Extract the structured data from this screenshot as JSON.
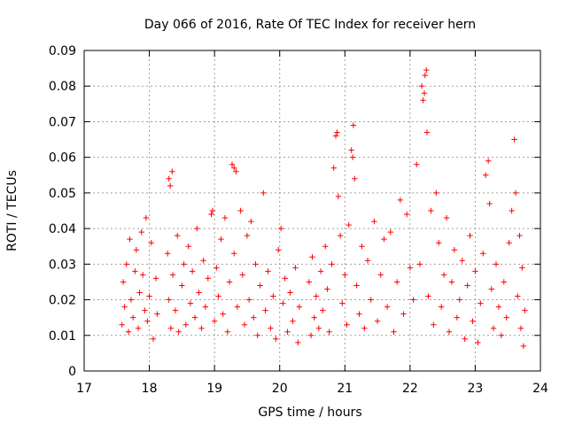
{
  "chart_data": {
    "type": "scatter",
    "title": "Day 066 of 2016, Rate Of TEC Index for receiver hern",
    "xlabel": "GPS time / hours",
    "ylabel": "ROTI / TECUs",
    "xlim": [
      17,
      24
    ],
    "ylim": [
      0,
      0.09
    ],
    "xticks": [
      17,
      18,
      19,
      20,
      21,
      22,
      23,
      24
    ],
    "yticks": [
      0,
      0.01,
      0.02,
      0.03,
      0.04,
      0.05,
      0.06,
      0.07,
      0.08,
      0.09
    ],
    "ytick_labels": [
      "0",
      "0.01",
      "0.02",
      "0.03",
      "0.04",
      "0.05",
      "0.06",
      "0.07",
      "0.08",
      "0.09"
    ],
    "grid": true,
    "marker": "+",
    "color": "#ff0000",
    "series": [
      {
        "name": "ROTI",
        "points": [
          [
            17.58,
            0.013
          ],
          [
            17.6,
            0.025
          ],
          [
            17.62,
            0.018
          ],
          [
            17.65,
            0.03
          ],
          [
            17.68,
            0.011
          ],
          [
            17.7,
            0.037
          ],
          [
            17.72,
            0.02
          ],
          [
            17.75,
            0.015
          ],
          [
            17.78,
            0.028
          ],
          [
            17.8,
            0.034
          ],
          [
            17.83,
            0.012
          ],
          [
            17.85,
            0.022
          ],
          [
            17.88,
            0.039
          ],
          [
            17.9,
            0.027
          ],
          [
            17.93,
            0.017
          ],
          [
            17.95,
            0.043
          ],
          [
            17.97,
            0.014
          ],
          [
            18.0,
            0.021
          ],
          [
            18.03,
            0.036
          ],
          [
            18.06,
            0.009
          ],
          [
            18.1,
            0.026
          ],
          [
            18.12,
            0.016
          ],
          [
            18.3,
            0.054
          ],
          [
            18.32,
            0.052
          ],
          [
            18.35,
            0.056
          ],
          [
            18.28,
            0.033
          ],
          [
            18.3,
            0.02
          ],
          [
            18.33,
            0.012
          ],
          [
            18.36,
            0.027
          ],
          [
            18.4,
            0.017
          ],
          [
            18.43,
            0.038
          ],
          [
            18.45,
            0.011
          ],
          [
            18.5,
            0.024
          ],
          [
            18.53,
            0.03
          ],
          [
            18.56,
            0.013
          ],
          [
            18.6,
            0.035
          ],
          [
            18.63,
            0.019
          ],
          [
            18.66,
            0.028
          ],
          [
            18.7,
            0.015
          ],
          [
            18.73,
            0.04
          ],
          [
            18.76,
            0.022
          ],
          [
            18.8,
            0.012
          ],
          [
            18.83,
            0.031
          ],
          [
            18.86,
            0.018
          ],
          [
            18.9,
            0.026
          ],
          [
            18.95,
            0.044
          ],
          [
            18.97,
            0.045
          ],
          [
            19.0,
            0.014
          ],
          [
            19.03,
            0.029
          ],
          [
            19.06,
            0.021
          ],
          [
            19.1,
            0.037
          ],
          [
            19.13,
            0.016
          ],
          [
            19.16,
            0.043
          ],
          [
            19.2,
            0.011
          ],
          [
            19.23,
            0.025
          ],
          [
            19.27,
            0.058
          ],
          [
            19.3,
            0.057
          ],
          [
            19.33,
            0.056
          ],
          [
            19.3,
            0.033
          ],
          [
            19.35,
            0.018
          ],
          [
            19.4,
            0.045
          ],
          [
            19.43,
            0.027
          ],
          [
            19.46,
            0.013
          ],
          [
            19.5,
            0.038
          ],
          [
            19.53,
            0.02
          ],
          [
            19.56,
            0.042
          ],
          [
            19.6,
            0.015
          ],
          [
            19.63,
            0.03
          ],
          [
            19.66,
            0.01
          ],
          [
            19.7,
            0.024
          ],
          [
            19.75,
            0.05
          ],
          [
            19.78,
            0.017
          ],
          [
            19.82,
            0.028
          ],
          [
            19.86,
            0.012
          ],
          [
            19.9,
            0.021
          ],
          [
            19.94,
            0.009
          ],
          [
            19.98,
            0.034
          ],
          [
            20.02,
            0.04
          ],
          [
            20.05,
            0.019
          ],
          [
            20.08,
            0.026
          ],
          [
            20.12,
            0.011
          ],
          [
            20.16,
            0.022
          ],
          [
            20.2,
            0.014
          ],
          [
            20.24,
            0.029
          ],
          [
            20.28,
            0.008
          ],
          [
            20.3,
            0.018
          ],
          [
            20.45,
            0.025
          ],
          [
            20.48,
            0.01
          ],
          [
            20.5,
            0.032
          ],
          [
            20.53,
            0.015
          ],
          [
            20.56,
            0.021
          ],
          [
            20.6,
            0.012
          ],
          [
            20.63,
            0.028
          ],
          [
            20.66,
            0.017
          ],
          [
            20.7,
            0.035
          ],
          [
            20.73,
            0.023
          ],
          [
            20.76,
            0.011
          ],
          [
            20.8,
            0.03
          ],
          [
            20.83,
            0.057
          ],
          [
            20.86,
            0.066
          ],
          [
            20.88,
            0.067
          ],
          [
            20.9,
            0.049
          ],
          [
            20.93,
            0.038
          ],
          [
            20.96,
            0.019
          ],
          [
            21.0,
            0.027
          ],
          [
            21.03,
            0.013
          ],
          [
            21.06,
            0.041
          ],
          [
            21.1,
            0.062
          ],
          [
            21.12,
            0.06
          ],
          [
            21.13,
            0.069
          ],
          [
            21.15,
            0.054
          ],
          [
            21.18,
            0.024
          ],
          [
            21.22,
            0.016
          ],
          [
            21.26,
            0.035
          ],
          [
            21.3,
            0.012
          ],
          [
            21.35,
            0.031
          ],
          [
            21.4,
            0.02
          ],
          [
            21.45,
            0.042
          ],
          [
            21.5,
            0.014
          ],
          [
            21.55,
            0.027
          ],
          [
            21.6,
            0.037
          ],
          [
            21.65,
            0.018
          ],
          [
            21.7,
            0.039
          ],
          [
            21.75,
            0.011
          ],
          [
            21.8,
            0.025
          ],
          [
            21.85,
            0.048
          ],
          [
            21.9,
            0.016
          ],
          [
            21.95,
            0.044
          ],
          [
            22.0,
            0.029
          ],
          [
            22.05,
            0.02
          ],
          [
            22.1,
            0.058
          ],
          [
            22.15,
            0.03
          ],
          [
            22.18,
            0.08
          ],
          [
            22.2,
            0.076
          ],
          [
            22.22,
            0.078
          ],
          [
            22.23,
            0.083
          ],
          [
            22.25,
            0.0845
          ],
          [
            22.26,
            0.067
          ],
          [
            22.28,
            0.021
          ],
          [
            22.32,
            0.045
          ],
          [
            22.36,
            0.013
          ],
          [
            22.4,
            0.05
          ],
          [
            22.44,
            0.036
          ],
          [
            22.48,
            0.018
          ],
          [
            22.52,
            0.027
          ],
          [
            22.56,
            0.043
          ],
          [
            22.6,
            0.011
          ],
          [
            22.64,
            0.025
          ],
          [
            22.68,
            0.034
          ],
          [
            22.72,
            0.015
          ],
          [
            22.76,
            0.02
          ],
          [
            22.8,
            0.031
          ],
          [
            22.84,
            0.009
          ],
          [
            22.88,
            0.024
          ],
          [
            22.92,
            0.038
          ],
          [
            22.96,
            0.014
          ],
          [
            23.0,
            0.028
          ],
          [
            23.04,
            0.008
          ],
          [
            23.08,
            0.019
          ],
          [
            23.12,
            0.033
          ],
          [
            23.16,
            0.055
          ],
          [
            23.2,
            0.059
          ],
          [
            23.22,
            0.047
          ],
          [
            23.25,
            0.023
          ],
          [
            23.28,
            0.012
          ],
          [
            23.32,
            0.03
          ],
          [
            23.36,
            0.018
          ],
          [
            23.4,
            0.01
          ],
          [
            23.44,
            0.025
          ],
          [
            23.48,
            0.015
          ],
          [
            23.52,
            0.036
          ],
          [
            23.56,
            0.045
          ],
          [
            23.6,
            0.065
          ],
          [
            23.62,
            0.05
          ],
          [
            23.65,
            0.021
          ],
          [
            23.68,
            0.038
          ],
          [
            23.7,
            0.012
          ],
          [
            23.72,
            0.029
          ],
          [
            23.74,
            0.007
          ],
          [
            23.76,
            0.017
          ]
        ]
      }
    ]
  }
}
